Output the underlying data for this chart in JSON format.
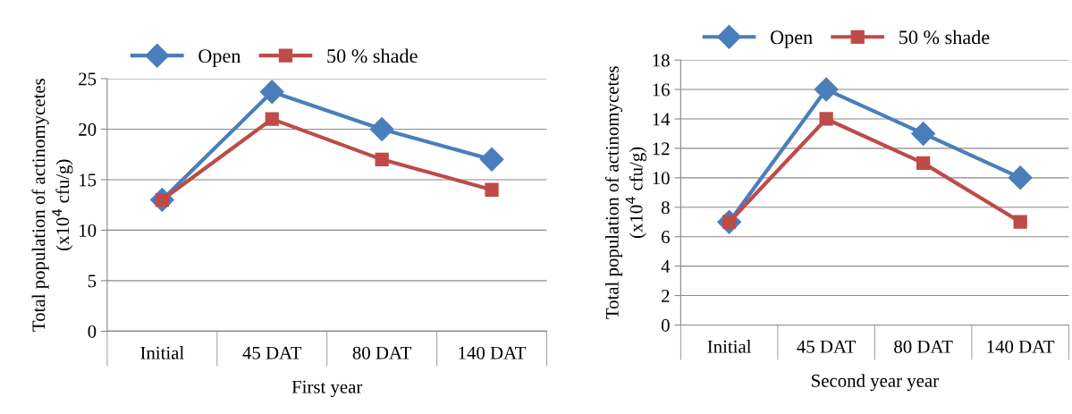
{
  "chart_data": [
    {
      "type": "line",
      "categories": [
        "Initial",
        "45 DAT",
        "80 DAT",
        "140 DAT"
      ],
      "xlabel": "First year",
      "ylabel": "Total population of actinomycetes\n(x10$^{4}$ cfu/g)",
      "ylim": [
        0,
        25
      ],
      "yticks": [
        0,
        5,
        10,
        15,
        20,
        25
      ],
      "grid": "y",
      "legend": "top left",
      "series": [
        {
          "name": "Open",
          "color": "#4a7ebb",
          "marker": "diamond",
          "values": [
            13,
            23.7,
            20,
            17
          ]
        },
        {
          "name": "50 % shade",
          "color": "#be4b48",
          "marker": "square",
          "values": [
            13,
            21,
            17,
            14
          ]
        }
      ]
    },
    {
      "type": "line",
      "categories": [
        "Initial",
        "45 DAT",
        "80 DAT",
        "140 DAT"
      ],
      "xlabel": "Second year year",
      "ylabel": "Total population of actinomycetes\n(x10$^{4}$ cfu/g)",
      "ylim": [
        0,
        18
      ],
      "yticks": [
        0,
        2,
        4,
        6,
        8,
        10,
        12,
        14,
        16,
        18
      ],
      "grid": "y",
      "legend": "top left",
      "series": [
        {
          "name": "Open",
          "color": "#4a7ebb",
          "marker": "diamond",
          "values": [
            7,
            16,
            13,
            10
          ]
        },
        {
          "name": "50 % shade",
          "color": "#be4b48",
          "marker": "square",
          "values": [
            7,
            14,
            11,
            7
          ]
        }
      ]
    }
  ]
}
